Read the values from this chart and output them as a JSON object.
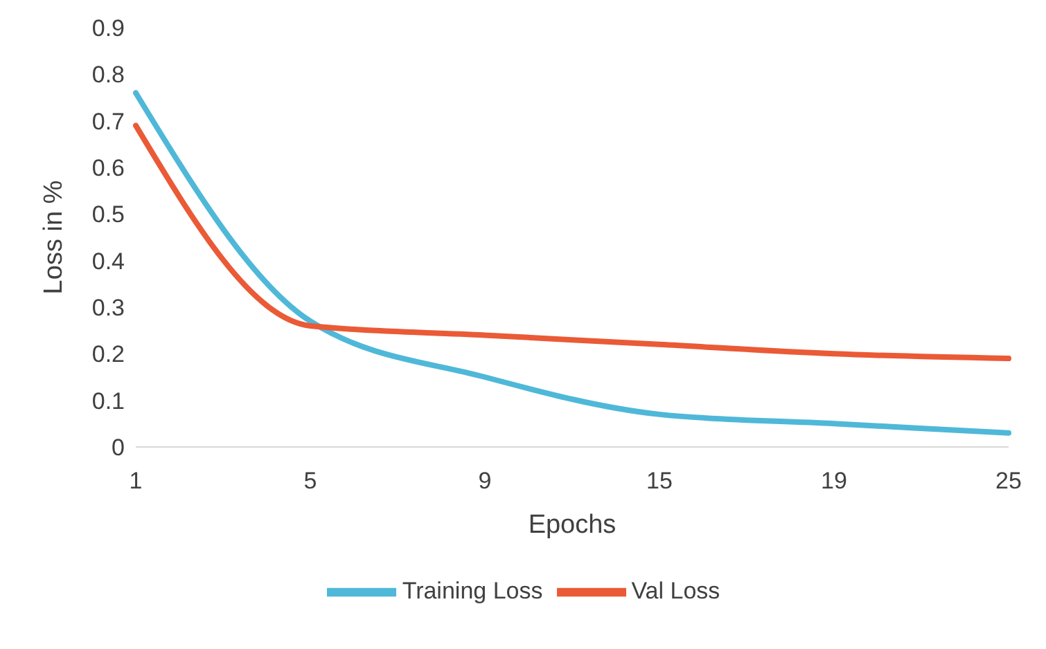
{
  "chart_data": {
    "type": "line",
    "xlabel": "Epochs",
    "ylabel": "Loss in %",
    "categories": [
      "1",
      "5",
      "9",
      "15",
      "19",
      "25"
    ],
    "series": [
      {
        "name": "Training Loss",
        "color": "#4fb8d8",
        "values": [
          0.76,
          0.27,
          0.15,
          0.07,
          0.05,
          0.03
        ]
      },
      {
        "name": "Val Loss",
        "color": "#ea5a36",
        "values": [
          0.69,
          0.26,
          0.24,
          0.22,
          0.2,
          0.19
        ]
      }
    ],
    "ylim": [
      0,
      0.9
    ],
    "yticks": [
      0,
      0.1,
      0.2,
      0.3,
      0.4,
      0.5,
      0.6,
      0.7,
      0.8,
      0.9
    ],
    "grid": false,
    "legend": "bottom",
    "marker": "none",
    "line_style": "solid"
  }
}
